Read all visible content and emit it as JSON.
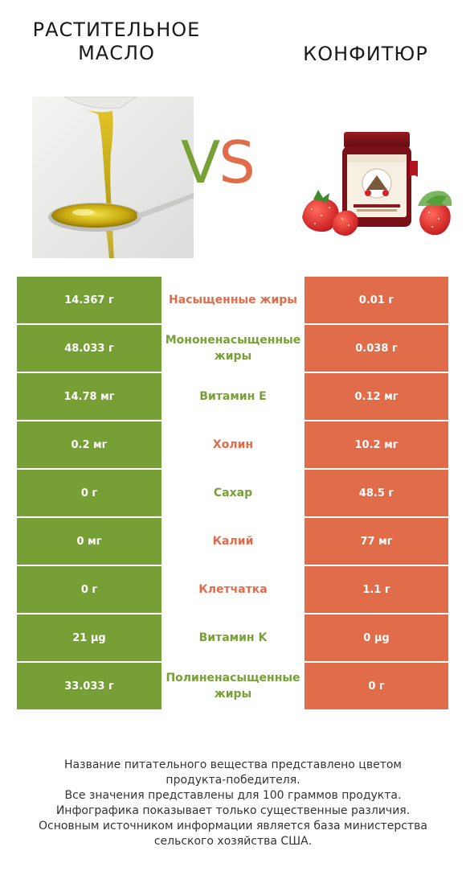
{
  "left": {
    "title_line1": "РАСТИТЕЛЬНОЕ",
    "title_line2": "МАСЛО",
    "color": "#76a036"
  },
  "right": {
    "title": "КОНФИТЮР",
    "color": "#e06c4a"
  },
  "vs": {
    "v": "V",
    "s": "S"
  },
  "rows": [
    {
      "left": "14.367 г",
      "label": "Насыщенные жиры",
      "right": "0.01 г",
      "winner": "right"
    },
    {
      "left": "48.033 г",
      "label": "Мононенасыщенные жиры",
      "right": "0.038 г",
      "winner": "left"
    },
    {
      "left": "14.78 мг",
      "label": "Витамин E",
      "right": "0.12 мг",
      "winner": "left"
    },
    {
      "left": "0.2 мг",
      "label": "Холин",
      "right": "10.2 мг",
      "winner": "right"
    },
    {
      "left": "0 г",
      "label": "Сахар",
      "right": "48.5 г",
      "winner": "left"
    },
    {
      "left": "0 мг",
      "label": "Калий",
      "right": "77 мг",
      "winner": "right"
    },
    {
      "left": "0 г",
      "label": "Клетчатка",
      "right": "1.1 г",
      "winner": "right"
    },
    {
      "left": "21 µg",
      "label": "Витамин K",
      "right": "0 µg",
      "winner": "left"
    },
    {
      "left": "33.033 г",
      "label": "Полиненасыщенные жиры",
      "right": "0 г",
      "winner": "left"
    }
  ],
  "footer": {
    "line1": "Название питательного вещества представлено цветом",
    "line2": "продукта-победителя.",
    "line3": "Все значения представлены для 100 граммов продукта.",
    "line4": "Инфографика показывает только существенные различия.",
    "line5": "Основным источником информации является база министерства",
    "line6": "сельского хозяйства США."
  }
}
